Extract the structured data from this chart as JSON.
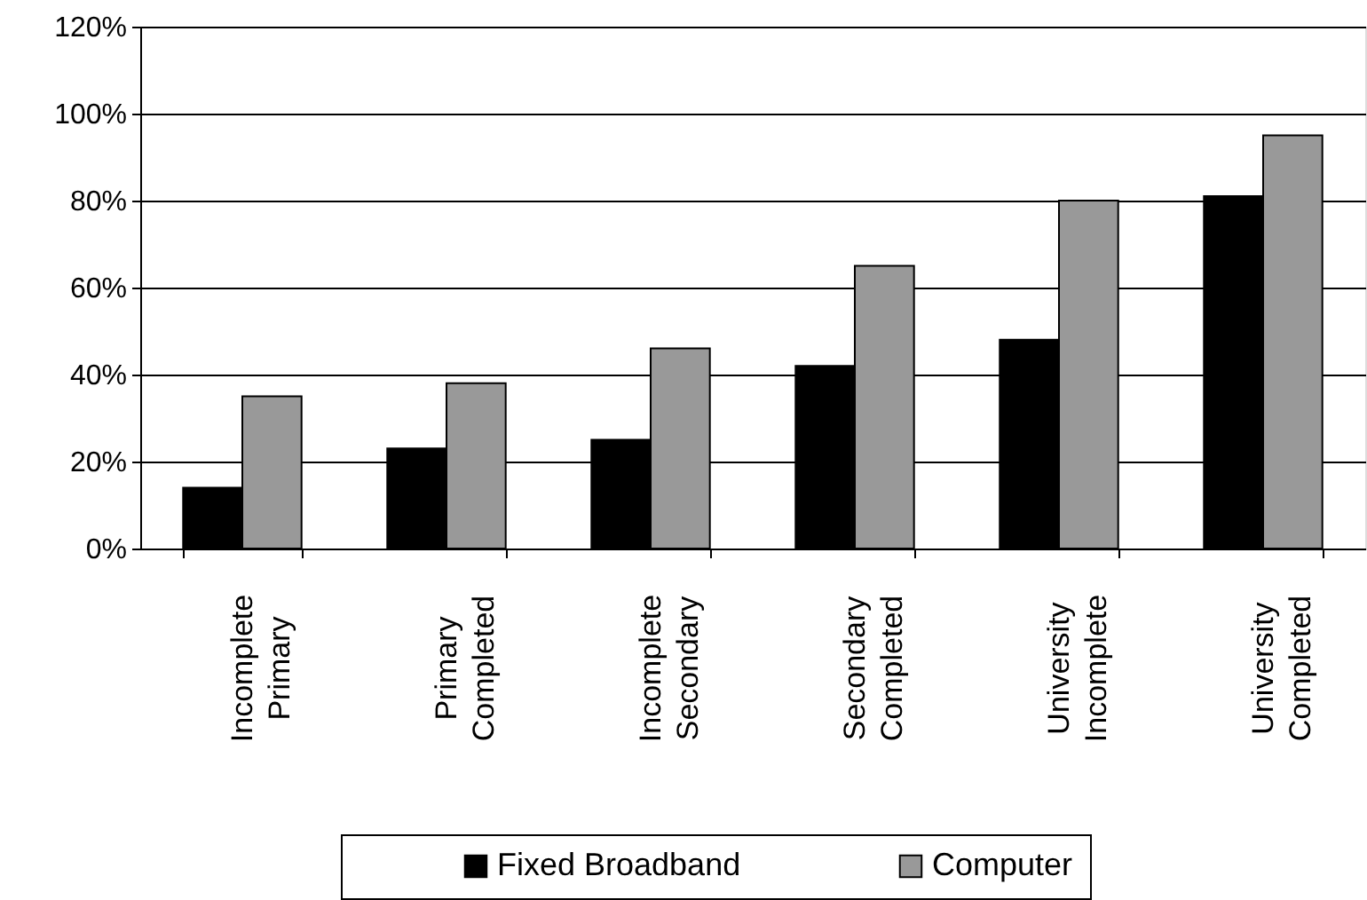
{
  "chart_data": {
    "type": "bar",
    "categories": [
      "Incomplete Primary",
      "Primary Completed",
      "Incomplete Secondary",
      "Secondary Completed",
      "University Incomplete",
      "University Completed"
    ],
    "series": [
      {
        "name": "Fixed Broadband",
        "color": "#000000",
        "values": [
          14,
          23,
          25,
          42,
          48,
          81
        ]
      },
      {
        "name": "Computer",
        "color": "#999999",
        "values": [
          35,
          38,
          46,
          65,
          80,
          95
        ]
      }
    ],
    "ylim": [
      0,
      120
    ],
    "yticks": [
      {
        "value": 0,
        "label": "0%"
      },
      {
        "value": 20,
        "label": "20%"
      },
      {
        "value": 40,
        "label": "40%"
      },
      {
        "value": 60,
        "label": "60%"
      },
      {
        "value": 80,
        "label": "80%"
      },
      {
        "value": 100,
        "label": "100%"
      },
      {
        "value": 120,
        "label": "120%"
      }
    ],
    "grid": "y",
    "legend": "bottom"
  }
}
